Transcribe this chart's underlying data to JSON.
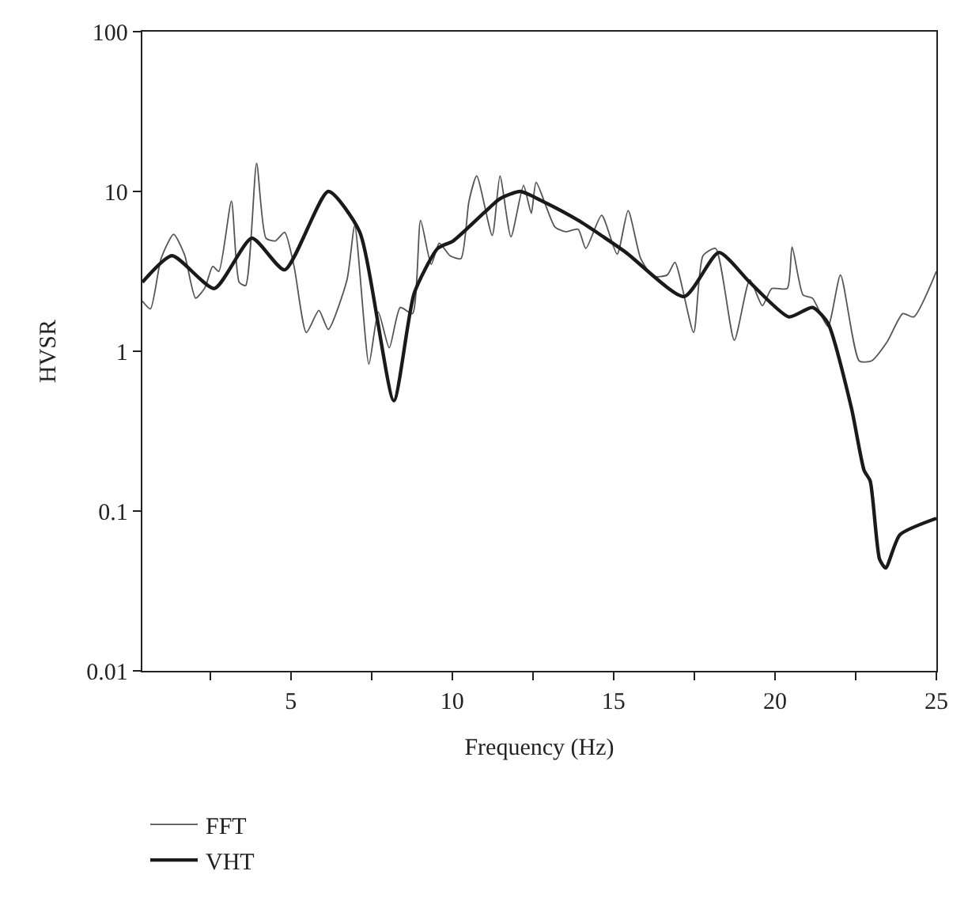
{
  "chart_data": {
    "type": "line",
    "xlabel": "Frequency (Hz)",
    "ylabel": "HVSR",
    "log": "y",
    "xlim": [
      0.4,
      25
    ],
    "ylim": [
      0.01,
      100
    ],
    "xticks": [
      {
        "value": 2.5,
        "label": null
      },
      5,
      {
        "value": 7.5,
        "label": null
      },
      10,
      {
        "value": 12.5,
        "label": null
      },
      15,
      {
        "value": 17.5,
        "label": null
      },
      20,
      {
        "value": 22.5,
        "label": null
      },
      25
    ],
    "yticks": [
      0.01,
      0.1,
      1,
      10,
      100
    ],
    "legend": "bottom left",
    "marker": "none",
    "line_style": "solid",
    "series": [
      {
        "name": "FFT",
        "color": "#555555",
        "x": [
          0.4,
          0.65,
          0.98,
          1.37,
          1.71,
          2.05,
          2.34,
          2.58,
          2.77,
          3.16,
          3.4,
          3.6,
          3.94,
          4.23,
          4.52,
          4.81,
          5.1,
          5.48,
          5.87,
          6.16,
          6.74,
          6.98,
          7.42,
          7.71,
          8.05,
          8.39,
          8.77,
          9.02,
          9.35,
          9.6,
          9.93,
          10.27,
          10.52,
          10.76,
          11.24,
          11.48,
          11.82,
          12.21,
          12.45,
          12.6,
          13.18,
          13.51,
          13.9,
          14.14,
          14.63,
          15.11,
          15.45,
          15.84,
          16.22,
          16.66,
          16.9,
          17.48,
          17.77,
          18.16,
          18.74,
          19.22,
          19.61,
          19.9,
          20.38,
          20.53,
          20.87,
          21.16,
          21.64,
          22.03,
          22.61,
          22.99,
          23.48,
          23.96,
          24.3,
          25
        ],
        "values": [
          2.06,
          1.84,
          3.8,
          5.4,
          4.0,
          2.15,
          2.5,
          3.4,
          3.16,
          8.7,
          2.7,
          2.58,
          15,
          5.1,
          4.9,
          5.55,
          3.4,
          1.31,
          1.8,
          1.37,
          2.8,
          6.1,
          0.83,
          1.76,
          1.05,
          1.88,
          1.72,
          6.6,
          3.5,
          4.75,
          3.96,
          3.8,
          8.7,
          12.5,
          5.3,
          12.5,
          5.2,
          10.9,
          7.3,
          11.4,
          6.0,
          5.6,
          5.8,
          4.4,
          7.1,
          4.05,
          7.6,
          3.8,
          2.95,
          3.0,
          3.6,
          1.31,
          3.96,
          4.4,
          1.17,
          2.8,
          1.93,
          2.47,
          2.47,
          4.5,
          2.25,
          2.15,
          1.43,
          3.0,
          0.87,
          0.87,
          1.15,
          1.72,
          1.64,
          3.16
        ]
      },
      {
        "name": "VHT",
        "color": "#1a1a1a",
        "x": [
          0.4,
          1.32,
          2.63,
          3.79,
          4.81,
          6.16,
          7.13,
          8.19,
          8.82,
          9.55,
          10.03,
          11.0,
          11.48,
          12.11,
          12.79,
          13.9,
          15.35,
          17.19,
          18.26,
          19.22,
          20.43,
          21.16,
          21.64,
          22.37,
          22.76,
          22.95,
          23.24,
          23.43,
          23.87,
          25
        ],
        "values": [
          2.7,
          3.96,
          2.47,
          5.1,
          3.23,
          10,
          5.6,
          0.49,
          2.3,
          4.4,
          4.9,
          7.4,
          9,
          10,
          8.7,
          6.6,
          4.2,
          2.2,
          4.15,
          2.7,
          1.64,
          1.88,
          1.5,
          0.44,
          0.18,
          0.154,
          0.05,
          0.044,
          0.071,
          0.09
        ]
      }
    ]
  }
}
